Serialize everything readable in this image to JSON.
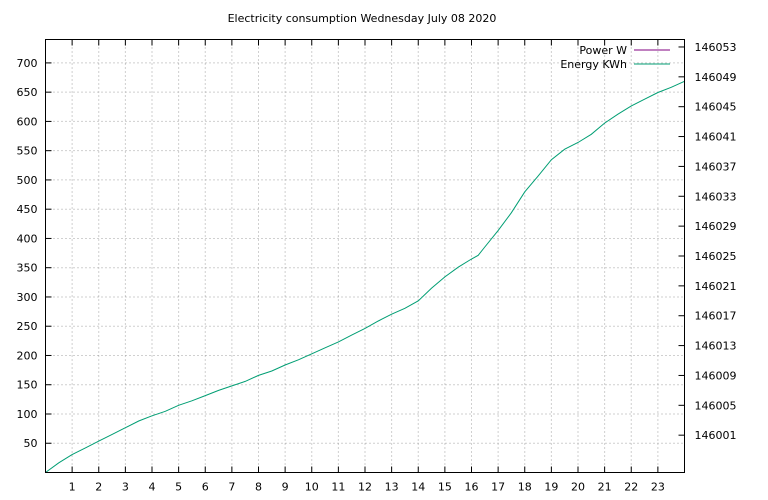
{
  "chart_data": {
    "type": "line",
    "title": "Electricity consumption Wednesday July 08 2020",
    "xlabel": "",
    "ylabel": "",
    "y2label": "",
    "grid": true,
    "legend_position": "top-right",
    "xlim": [
      0,
      24
    ],
    "ylim": [
      0,
      740
    ],
    "y2lim": [
      145996,
      146054
    ],
    "x_ticks": [
      1,
      2,
      3,
      4,
      5,
      6,
      7,
      8,
      9,
      10,
      11,
      12,
      13,
      14,
      15,
      16,
      17,
      18,
      19,
      20,
      21,
      22,
      23
    ],
    "y_ticks": [
      50,
      100,
      150,
      200,
      250,
      300,
      350,
      400,
      450,
      500,
      550,
      600,
      650,
      700
    ],
    "y2_ticks": [
      146001,
      146005,
      146009,
      146013,
      146017,
      146021,
      146025,
      146029,
      146033,
      146037,
      146041,
      146045,
      146049,
      146053
    ],
    "series": [
      {
        "name": "Power W",
        "color": "#800080",
        "axis": "y",
        "x": [],
        "values": []
      },
      {
        "name": "Energy KWh",
        "color": "#009e73",
        "axis": "y2",
        "x": [
          0,
          0.5,
          1,
          1.5,
          2,
          2.5,
          3,
          3.5,
          4,
          4.5,
          5,
          5.5,
          6,
          6.5,
          7,
          7.5,
          8,
          8.5,
          9,
          9.5,
          10,
          10.5,
          11,
          11.5,
          12,
          12.5,
          13,
          13.5,
          14,
          14.5,
          15,
          15.5,
          16,
          16.25,
          16.5,
          17,
          17.5,
          18,
          18.5,
          19,
          19.5,
          20,
          20.5,
          21,
          21.5,
          22,
          22.5,
          23,
          23.5,
          24
        ],
        "values": [
          145996.0,
          145997.3,
          145998.4,
          145999.3,
          146000.2,
          146001.1,
          146002.0,
          146002.9,
          146003.6,
          146004.2,
          146005.0,
          146005.6,
          146006.3,
          146007.0,
          146007.6,
          146008.2,
          146009.0,
          146009.6,
          146010.4,
          146011.1,
          146011.9,
          146012.7,
          146013.5,
          146014.4,
          146015.3,
          146016.3,
          146017.2,
          146018.0,
          146019.0,
          146020.7,
          146022.2,
          146023.5,
          146024.6,
          146025.1,
          146026.2,
          146028.4,
          146030.8,
          146033.6,
          146035.7,
          146037.9,
          146039.3,
          146040.2,
          146041.3,
          146042.8,
          146044.0,
          146045.1,
          146046.0,
          146046.9,
          146047.6,
          146048.4
        ]
      }
    ]
  }
}
